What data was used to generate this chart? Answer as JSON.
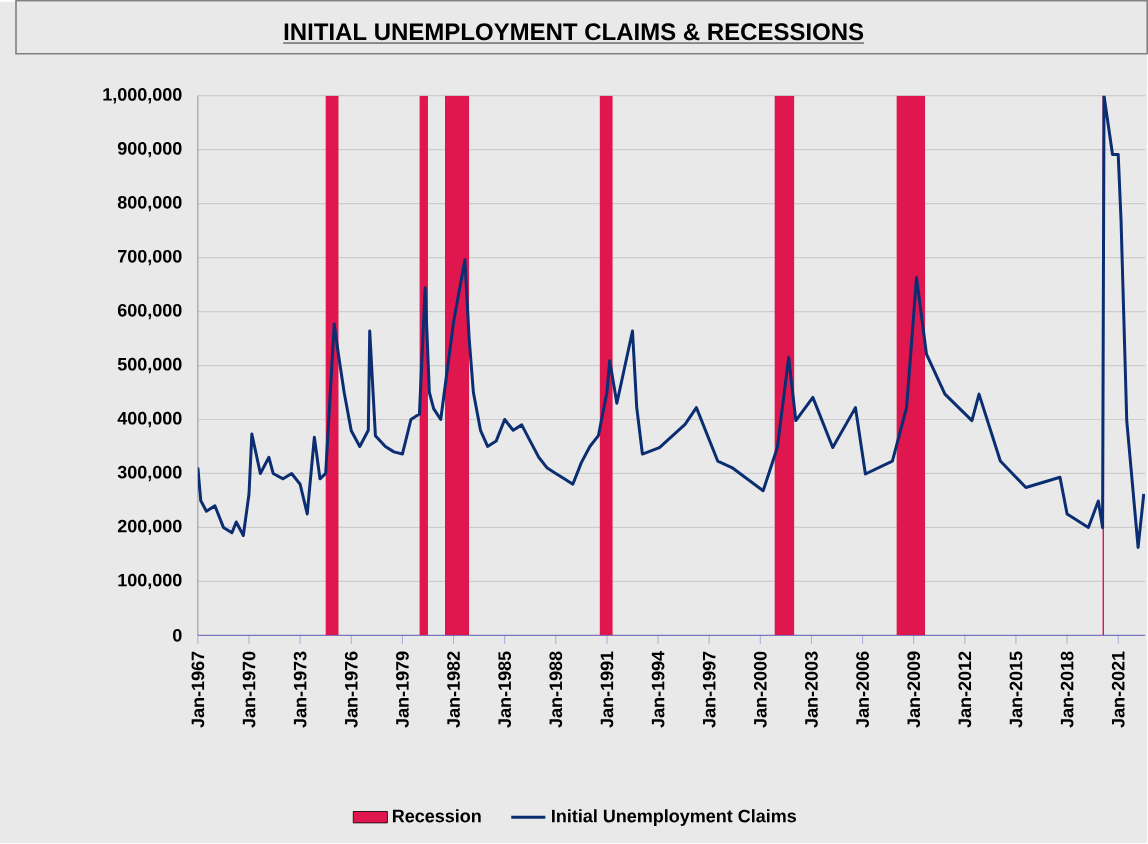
{
  "chart_data": {
    "type": "line",
    "title": "INITIAL UNEMPLOYMENT CLAIMS & RECESSIONS",
    "x": [
      "1967-01",
      "1967-03",
      "1967-07",
      "1968-01",
      "1968-07",
      "1969-01",
      "1969-04",
      "1969-09",
      "1970-01",
      "1970-03",
      "1970-09",
      "1971-03",
      "1971-06",
      "1972-01",
      "1972-07",
      "1973-01",
      "1973-06",
      "1973-11",
      "1974-03",
      "1974-07",
      "1975-01",
      "1975-04",
      "1975-08",
      "1976-01",
      "1976-07",
      "1977-01",
      "1977-02",
      "1977-06",
      "1978-01",
      "1978-07",
      "1979-01",
      "1979-07",
      "1980-01",
      "1980-05",
      "1980-08",
      "1980-11",
      "1981-04",
      "1981-09",
      "1982-01",
      "1982-09",
      "1982-12",
      "1983-03",
      "1983-08",
      "1984-01",
      "1984-07",
      "1985-01",
      "1985-07",
      "1986-01",
      "1986-07",
      "1987-01",
      "1987-07",
      "1988-01",
      "1988-07",
      "1989-01",
      "1989-07",
      "1990-01",
      "1990-07",
      "1991-01",
      "1991-03",
      "1991-08",
      "1992-07",
      "1992-10",
      "1993-02",
      "1994-02",
      "1995-08",
      "1996-04",
      "1997-07",
      "1998-05",
      "2000-03",
      "2001-01",
      "2001-09",
      "2002-02",
      "2003-02",
      "2004-04",
      "2005-08",
      "2006-03",
      "2007-10",
      "2008-08",
      "2009-03",
      "2009-10",
      "2010-11",
      "2012-06",
      "2012-11",
      "2014-02",
      "2015-08",
      "2017-08",
      "2018-01",
      "2019-04",
      "2019-11",
      "2020-02",
      "2020-03",
      "2020-09",
      "2021-01",
      "2021-03",
      "2021-07",
      "2022-03",
      "2022-07"
    ],
    "series": [
      {
        "name": "Initial Unemployment Claims",
        "color": "#0b2d72",
        "values": [
          311000,
          250000,
          230000,
          240000,
          200000,
          190000,
          210000,
          185000,
          262000,
          373000,
          300000,
          330000,
          300000,
          290000,
          300000,
          280000,
          225000,
          367000,
          290000,
          300000,
          577000,
          520000,
          450000,
          379000,
          350000,
          380000,
          564000,
          370000,
          350000,
          340000,
          336000,
          400000,
          410000,
          644000,
          450000,
          420000,
          400000,
          500000,
          580000,
          696000,
          550000,
          450000,
          380000,
          350000,
          360000,
          400000,
          380000,
          390000,
          360000,
          330000,
          310000,
          300000,
          290000,
          280000,
          320000,
          350000,
          370000,
          450000,
          509000,
          430000,
          564000,
          422000,
          336000,
          348000,
          391000,
          422000,
          323000,
          311000,
          268000,
          348000,
          515000,
          398000,
          441000,
          348000,
          422000,
          299000,
          323000,
          422000,
          663000,
          521000,
          447000,
          398000,
          447000,
          323000,
          274000,
          293000,
          225000,
          200000,
          249000,
          200000,
          1000000,
          891000,
          891000,
          768000,
          398000,
          163000,
          262000
        ]
      }
    ],
    "xlim": [
      "1967-01",
      "2022-08"
    ],
    "xticks": [
      {
        "value": "1967-01",
        "label": "Jan-1967"
      },
      {
        "value": "1970-01",
        "label": "Jan-1970"
      },
      {
        "value": "1973-01",
        "label": "Jan-1973"
      },
      {
        "value": "1976-01",
        "label": "Jan-1976"
      },
      {
        "value": "1979-01",
        "label": "Jan-1979"
      },
      {
        "value": "1982-01",
        "label": "Jan-1982"
      },
      {
        "value": "1985-01",
        "label": "Jan-1985"
      },
      {
        "value": "1988-01",
        "label": "Jan-1988"
      },
      {
        "value": "1991-01",
        "label": "Jan-1991"
      },
      {
        "value": "1994-01",
        "label": "Jan-1994"
      },
      {
        "value": "1997-01",
        "label": "Jan-1997"
      },
      {
        "value": "2000-01",
        "label": "Jan-2000"
      },
      {
        "value": "2003-01",
        "label": "Jan-2003"
      },
      {
        "value": "2006-01",
        "label": "Jan-2006"
      },
      {
        "value": "2009-01",
        "label": "Jan-2009"
      },
      {
        "value": "2012-01",
        "label": "Jan-2012"
      },
      {
        "value": "2015-01",
        "label": "Jan-2015"
      },
      {
        "value": "2018-01",
        "label": "Jan-2018"
      },
      {
        "value": "2021-01",
        "label": "Jan-2021"
      }
    ],
    "ylim": [
      0,
      1000000
    ],
    "yticks": [
      {
        "value": 0,
        "label": "0"
      },
      {
        "value": 100000,
        "label": "100,000"
      },
      {
        "value": 200000,
        "label": "200,000"
      },
      {
        "value": 300000,
        "label": "300,000"
      },
      {
        "value": 400000,
        "label": "400,000"
      },
      {
        "value": 500000,
        "label": "500,000"
      },
      {
        "value": 600000,
        "label": "600,000"
      },
      {
        "value": 700000,
        "label": "700,000"
      },
      {
        "value": 800000,
        "label": "800,000"
      },
      {
        "value": 900000,
        "label": "900,000"
      },
      {
        "value": 1000000,
        "label": "1,000,000"
      }
    ],
    "bands": [
      {
        "axis": "x",
        "from": "1974-07",
        "to": "1975-04",
        "label": "Recession",
        "color": "#e0174f"
      },
      {
        "axis": "x",
        "from": "1980-01",
        "to": "1980-07",
        "color": "#e0174f"
      },
      {
        "axis": "x",
        "from": "1981-07",
        "to": "1982-12",
        "color": "#e0174f"
      },
      {
        "axis": "x",
        "from": "1990-08",
        "to": "1991-05",
        "color": "#e0174f"
      },
      {
        "axis": "x",
        "from": "2000-11",
        "to": "2002-01",
        "color": "#e0174f"
      },
      {
        "axis": "x",
        "from": "2008-01",
        "to": "2009-09",
        "color": "#e0174f"
      },
      {
        "axis": "x",
        "from": "2020-02",
        "to": "2020-03",
        "color": "#e0174f"
      }
    ],
    "grid": "y",
    "legend": "bottom",
    "marker": "none",
    "line_style": "solid"
  }
}
